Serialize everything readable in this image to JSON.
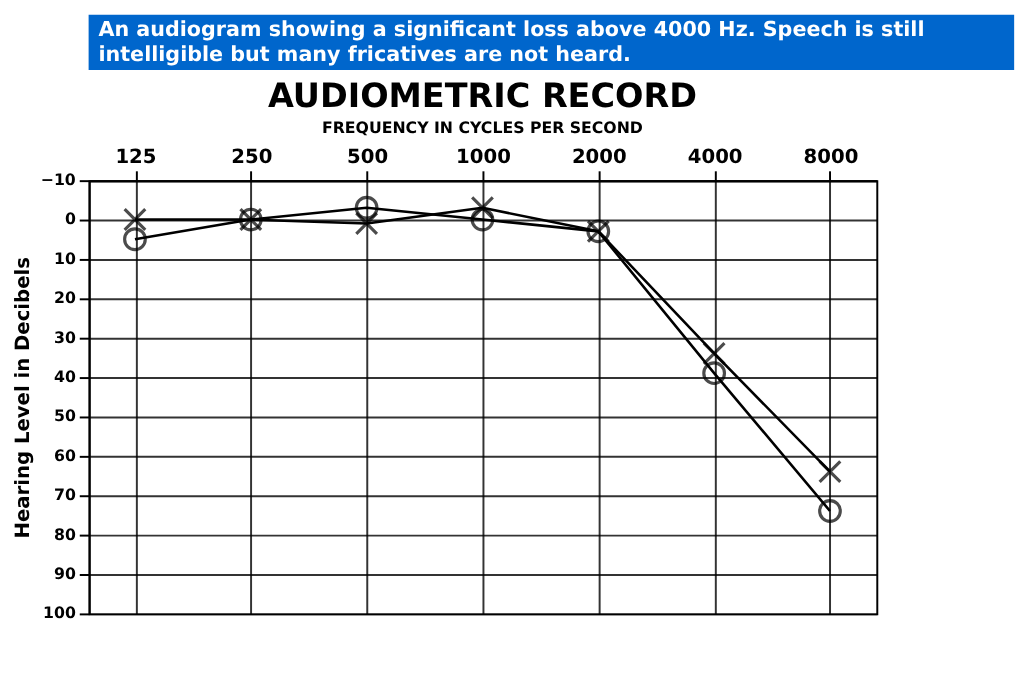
{
  "chart_data": {
    "type": "line",
    "title": "AUDIOMETRIC RECORD",
    "subtitle": "FREQUENCY IN CYCLES PER SECOND",
    "ylabel": "Hearing Level in Decibels",
    "annotations": [
      "An audiogram showing a significant loss above 4000 Hz.  Speech is still intelligible but many fricatives are not heard."
    ],
    "categories": [
      "125",
      "250",
      "500",
      "1000",
      "2000",
      "4000",
      "8000"
    ],
    "series": [
      {
        "color": "#000000",
        "marker": "circle",
        "values": [
          5,
          0,
          -3,
          0,
          3,
          39,
          74
        ]
      },
      {
        "color": "#000000",
        "marker": "cross",
        "values": [
          0,
          0,
          1,
          -3,
          3,
          34,
          64
        ]
      }
    ],
    "ylim": [
      100,
      -10
    ],
    "yticks": [
      -10,
      0,
      10,
      20,
      30,
      40,
      50,
      60,
      70,
      80,
      90,
      100
    ],
    "grid": true,
    "legend": false,
    "line_style": "solid"
  }
}
